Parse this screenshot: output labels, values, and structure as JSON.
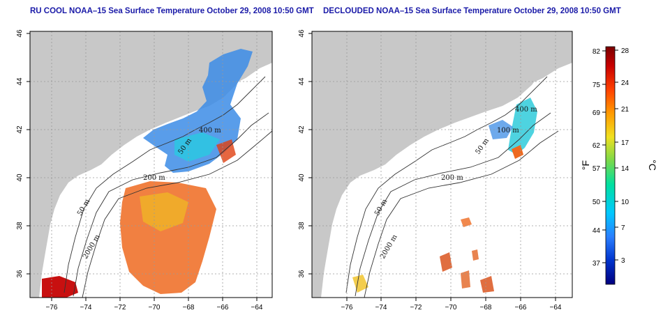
{
  "maps": [
    {
      "title": "RU COOL NOAA–15 Sea Surface Temperature October 29, 2008 10:50 GMT",
      "contour_labels": [
        "400 m",
        "50 m",
        "200 m",
        "50 m",
        "2000 m"
      ]
    },
    {
      "title": "DECLOUDED NOAA–15 Sea Surface Temperature October 29, 2008 10:50 GMT",
      "contour_labels": [
        "400 m",
        "100 m",
        "50 m",
        "200 m",
        "50 m",
        "2000 m"
      ]
    }
  ],
  "axes": {
    "lat_ticks": [
      "36",
      "38",
      "40",
      "42",
      "44",
      "46"
    ],
    "lon_ticks": [
      "−76",
      "−74",
      "−72",
      "−70",
      "−68",
      "−66",
      "−64"
    ],
    "lat_range": [
      35,
      46
    ],
    "lon_range": [
      -77,
      -63
    ],
    "grid": "dotted"
  },
  "colorbar": {
    "fahrenheit_ticks": [
      "82",
      "75",
      "69",
      "62",
      "57",
      "50",
      "44",
      "37"
    ],
    "celsius_ticks": [
      "28",
      "24",
      "21",
      "17",
      "14",
      "10",
      "7",
      "3"
    ],
    "f_label": "°F",
    "c_label": "°C",
    "colors": [
      "#00007f",
      "#0033cc",
      "#2a7fff",
      "#00c8ff",
      "#00e0a0",
      "#7ad94a",
      "#f0e020",
      "#ff9a00",
      "#ff4000",
      "#c80000",
      "#7a0000"
    ]
  },
  "land_color": "#c8c8c8",
  "cold_color": "#3c8ce6",
  "warm_color": "#ee6a20"
}
